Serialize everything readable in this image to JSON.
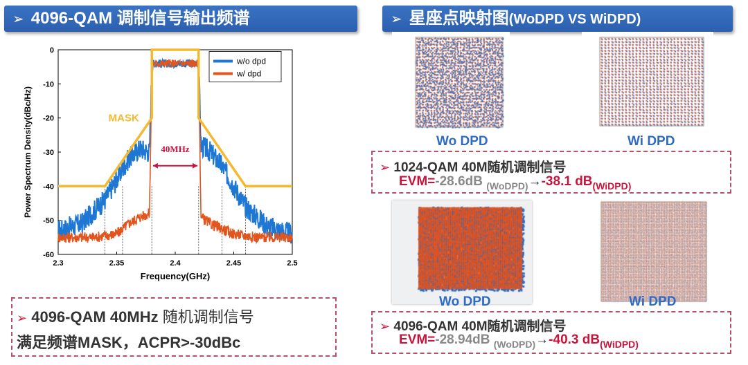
{
  "left_header": {
    "arrow": "➢",
    "title": "4096-QAM 调制信号输出频谱"
  },
  "right_header": {
    "arrow": "➢",
    "title_cn": "星座点映射图",
    "title_en": "(WoDPD VS WiDPD)"
  },
  "chart_data": {
    "type": "line",
    "xlabel": "Frequency(GHz)",
    "ylabel": "Power Spectrum Density(dBc/Hz)",
    "xlim": [
      2.3,
      2.5
    ],
    "ylim": [
      -60,
      0
    ],
    "xticks": [
      "2.3",
      "2.35",
      "2.4",
      "2.45",
      "2.5"
    ],
    "yticks": [
      "0",
      "-10",
      "-20",
      "-30",
      "-40",
      "-50",
      "-60"
    ],
    "grid": false,
    "legend_position": "top-right",
    "series": [
      {
        "name": "w/o dpd",
        "color": "#1f77d4",
        "x": [
          2.3,
          2.32,
          2.34,
          2.36,
          2.37,
          2.378,
          2.38,
          2.381,
          2.42,
          2.422,
          2.43,
          2.44,
          2.46,
          2.48,
          2.5
        ],
        "y": [
          -53,
          -51,
          -44,
          -32,
          -29,
          -30,
          -6,
          -4,
          -4,
          -28,
          -30,
          -34,
          -46,
          -52,
          -54
        ]
      },
      {
        "name": "w/ dpd",
        "color": "#e0561e",
        "x": [
          2.3,
          2.33,
          2.35,
          2.36,
          2.37,
          2.378,
          2.38,
          2.381,
          2.42,
          2.422,
          2.43,
          2.45,
          2.47,
          2.5
        ],
        "y": [
          -55,
          -55,
          -54,
          -51,
          -49,
          -48,
          -6,
          -4,
          -4,
          -49,
          -51,
          -54,
          -55,
          -55
        ]
      }
    ],
    "mask": {
      "name": "MASK",
      "color": "#f5b82e",
      "x": [
        2.3,
        2.34,
        2.38,
        2.38,
        2.42,
        2.42,
        2.46,
        2.5
      ],
      "y": [
        -40,
        -40,
        -20,
        0,
        0,
        -20,
        -40,
        -40
      ]
    },
    "annotations": [
      "MASK",
      "40MHz"
    ],
    "annotation_color": "#c8143c"
  },
  "left_note": {
    "line1_bold": "4096-QAM 40MHz",
    "line1_rest": " 随机调制信号",
    "line2": "满足频谱MASK，ACPR>-30dBc"
  },
  "const_top": {
    "wo_caption": "Wo DPD",
    "wi_caption": "Wi DPD"
  },
  "note_1024": {
    "title": "1024-QAM 40M随机调制信号",
    "evm_label": "EVM=",
    "wo_value": "-28.6dB",
    "wo_tag": "(WoDPD)",
    "arrow": "→",
    "wi_value": "-38.1 dB",
    "wi_tag": "(WiDPD)"
  },
  "const_bottom": {
    "wo_caption": "Wo DPD",
    "wi_caption": "Wi DPD"
  },
  "note_4096": {
    "title": "4096-QAM 40M随机调制信号",
    "evm_label": "EVM=",
    "wo_value": "-28.94dB",
    "wo_tag": "(WoDPD)",
    "arrow": "→",
    "wi_value": "-40.3 dB",
    "wi_tag": "(WiDPD)"
  }
}
